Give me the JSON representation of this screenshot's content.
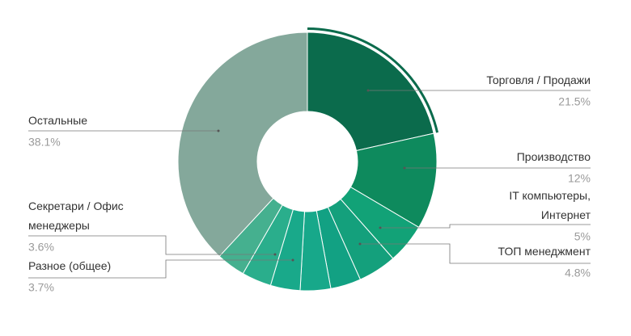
{
  "chart_data": {
    "type": "donut",
    "categories": [
      "Торговля / Продажи",
      "Производство",
      "IT компьютеры,\nИнтернет",
      "ТОП менеджмент",
      null,
      null,
      null,
      "Разное (общее)",
      "Секретари / Офис\nменеджеры",
      "Остальные"
    ],
    "values": [
      21.5,
      12,
      5,
      4.8,
      3.8,
      3.8,
      3.7,
      3.7,
      3.6,
      38.1
    ],
    "value_labels": [
      "21.5%",
      "12%",
      "5%",
      "4.8%",
      null,
      null,
      null,
      "3.7%",
      "3.6%",
      "38.1%"
    ],
    "colors": [
      "#0b6b4c",
      "#0e8a5d",
      "#12a277",
      "#14a07c",
      "#12a183",
      "#17a88a",
      "#19a98a",
      "#2aae8c",
      "#45b08f",
      "#84a89b"
    ]
  }
}
